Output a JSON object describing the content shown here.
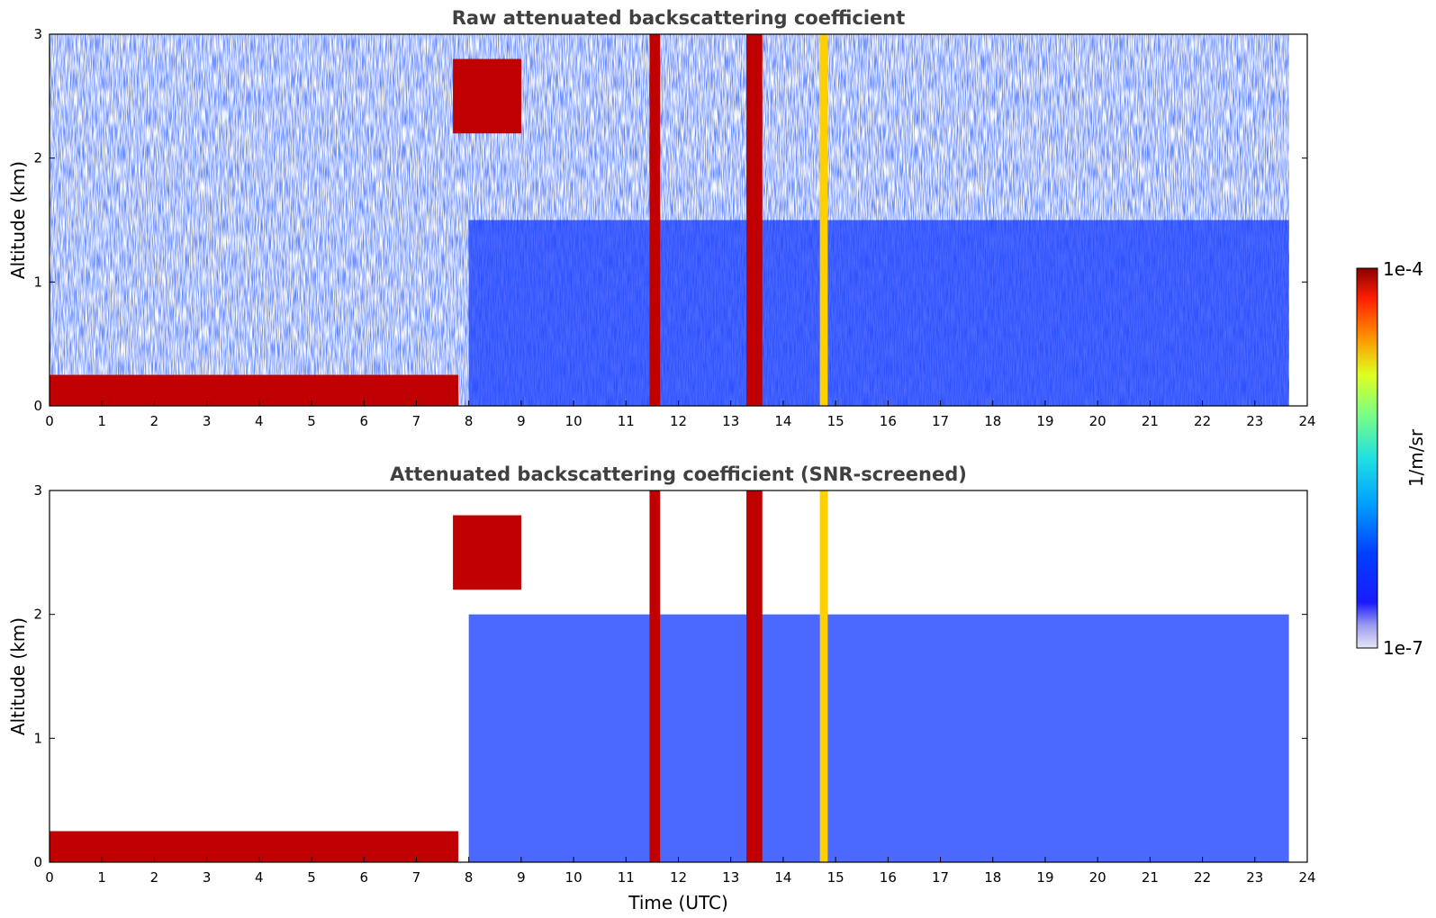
{
  "chart_data": [
    {
      "type": "heatmap",
      "title": "Raw attenuated backscattering coefficient",
      "xlabel": "",
      "ylabel": "Altitude (km)",
      "xlim": [
        0,
        24
      ],
      "ylim": [
        0,
        3
      ],
      "xticks": [
        "0",
        "1",
        "2",
        "3",
        "4",
        "5",
        "6",
        "7",
        "8",
        "9",
        "10",
        "11",
        "12",
        "13",
        "14",
        "15",
        "16",
        "17",
        "18",
        "19",
        "20",
        "21",
        "22",
        "23",
        "24"
      ],
      "yticks": [
        "0",
        "1",
        "2",
        "3"
      ],
      "data_end_time": 23.65,
      "features": [
        {
          "label": "surface aerosol layer",
          "time": [
            0,
            7.8
          ],
          "altitude": [
            0.0,
            0.25
          ],
          "level": "high"
        },
        {
          "label": "elevated cloud",
          "time": [
            7.7,
            9.0
          ],
          "altitude": [
            2.2,
            2.8
          ],
          "level": "high"
        },
        {
          "label": "precipitation column",
          "time": [
            11.45,
            11.65
          ],
          "altitude": [
            0,
            3
          ],
          "level": "high"
        },
        {
          "label": "precipitation column",
          "time": [
            13.3,
            13.6
          ],
          "altitude": [
            0,
            3
          ],
          "level": "high"
        },
        {
          "label": "precipitation column",
          "time": [
            14.7,
            14.85
          ],
          "altitude": [
            0,
            3
          ],
          "level": "medium"
        },
        {
          "label": "boundary layer",
          "time": [
            8,
            23.65
          ],
          "altitude": [
            0,
            1.5
          ],
          "level": "low"
        }
      ]
    },
    {
      "type": "heatmap",
      "title": "Attenuated backscattering coefficient (SNR-screened)",
      "xlabel": "Time (UTC)",
      "ylabel": "Altitude (km)",
      "xlim": [
        0,
        24
      ],
      "ylim": [
        0,
        3
      ],
      "xticks": [
        "0",
        "1",
        "2",
        "3",
        "4",
        "5",
        "6",
        "7",
        "8",
        "9",
        "10",
        "11",
        "12",
        "13",
        "14",
        "15",
        "16",
        "17",
        "18",
        "19",
        "20",
        "21",
        "22",
        "23",
        "24"
      ],
      "yticks": [
        "0",
        "1",
        "2",
        "3"
      ],
      "data_end_time": 23.65,
      "features": [
        {
          "label": "surface aerosol layer",
          "time": [
            0,
            7.8
          ],
          "altitude": [
            0.0,
            0.25
          ],
          "level": "high"
        },
        {
          "label": "elevated cloud",
          "time": [
            7.7,
            9.0
          ],
          "altitude": [
            2.2,
            2.8
          ],
          "level": "high"
        },
        {
          "label": "precipitation column",
          "time": [
            11.45,
            11.65
          ],
          "altitude": [
            0,
            3
          ],
          "level": "high"
        },
        {
          "label": "precipitation column",
          "time": [
            13.3,
            13.6
          ],
          "altitude": [
            0,
            3
          ],
          "level": "high"
        },
        {
          "label": "precipitation column",
          "time": [
            14.7,
            14.85
          ],
          "altitude": [
            0,
            3
          ],
          "level": "medium"
        },
        {
          "label": "boundary layer",
          "time": [
            8,
            23.65
          ],
          "altitude": [
            0,
            2.0
          ],
          "level": "low"
        }
      ]
    }
  ],
  "colorbar": {
    "label": "1/m/sr",
    "min_label": "1e-7",
    "max_label": "1e-4",
    "scale": "log",
    "colormap": "jet"
  }
}
